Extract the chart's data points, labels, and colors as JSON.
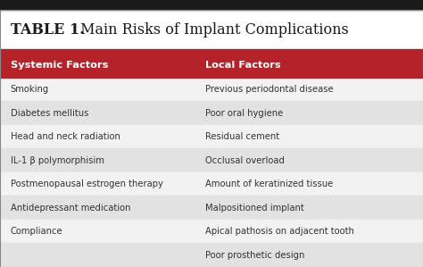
{
  "title_prefix": "TABLE 1.",
  "title_suffix": " Main Risks of Implant Complications",
  "header": [
    "Systemic Factors",
    "Local Factors"
  ],
  "header_bg": "#b5232a",
  "header_text_color": "#ffffff",
  "rows": [
    [
      "Smoking",
      "Previous periodontal disease"
    ],
    [
      "Diabetes mellitus",
      "Poor oral hygiene"
    ],
    [
      "Head and neck radiation",
      "Residual cement"
    ],
    [
      "IL-1 β polymorphisim",
      "Occlusal overload"
    ],
    [
      "Postmenopausal estrogen therapy",
      "Amount of keratinized tissue"
    ],
    [
      "Antidepressant medication",
      "Malpositioned implant"
    ],
    [
      "Compliance",
      "Apical pathosis on adjacent tooth"
    ],
    [
      "",
      "Poor prosthetic design"
    ]
  ],
  "odd_row_bg": "#e2e2e2",
  "even_row_bg": "#f2f2f2",
  "text_color": "#333333",
  "bg_color": "#f0efef",
  "border_color": "#888888",
  "top_border_color": "#1a1a1a",
  "col_split": 0.465,
  "figsize": [
    4.74,
    2.99
  ],
  "dpi": 100,
  "title_fontsize": 11.5,
  "header_fontsize": 8.2,
  "body_fontsize": 7.2
}
